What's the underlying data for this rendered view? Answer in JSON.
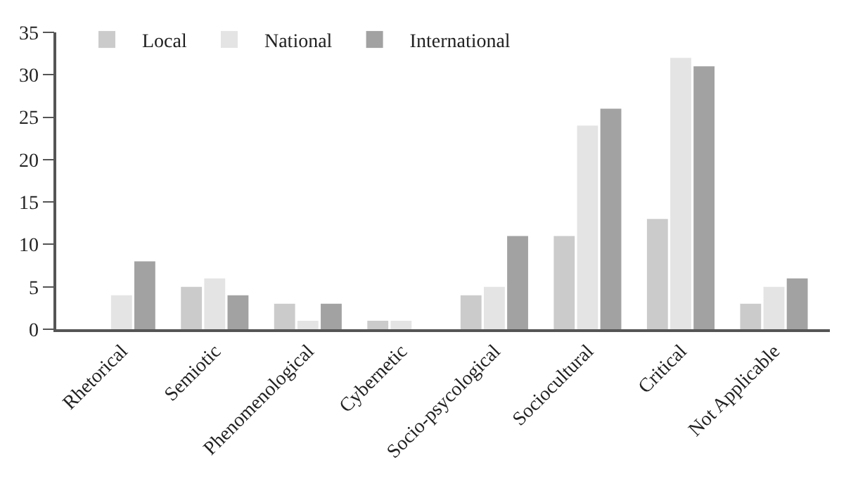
{
  "chart_data": {
    "type": "bar",
    "categories": [
      "Rhetorical",
      "Semiotic",
      "Phenomenological",
      "Cybernetic",
      "Socio-psycological",
      "Sociocultural",
      "Critical",
      "Not Applicable"
    ],
    "series": [
      {
        "name": "Local",
        "color": "#cbcbcb",
        "values": [
          0,
          5,
          3,
          1,
          4,
          11,
          13,
          3
        ]
      },
      {
        "name": "National",
        "color": "#e4e4e4",
        "values": [
          4,
          6,
          1,
          1,
          5,
          24,
          32,
          5
        ]
      },
      {
        "name": "International",
        "color": "#a2a2a2",
        "values": [
          8,
          4,
          3,
          0,
          11,
          26,
          31,
          6
        ]
      }
    ],
    "ylim": [
      0,
      35
    ],
    "yticks": [
      0,
      5,
      10,
      15,
      20,
      25,
      30,
      35
    ],
    "grid": false,
    "legend": "top"
  }
}
